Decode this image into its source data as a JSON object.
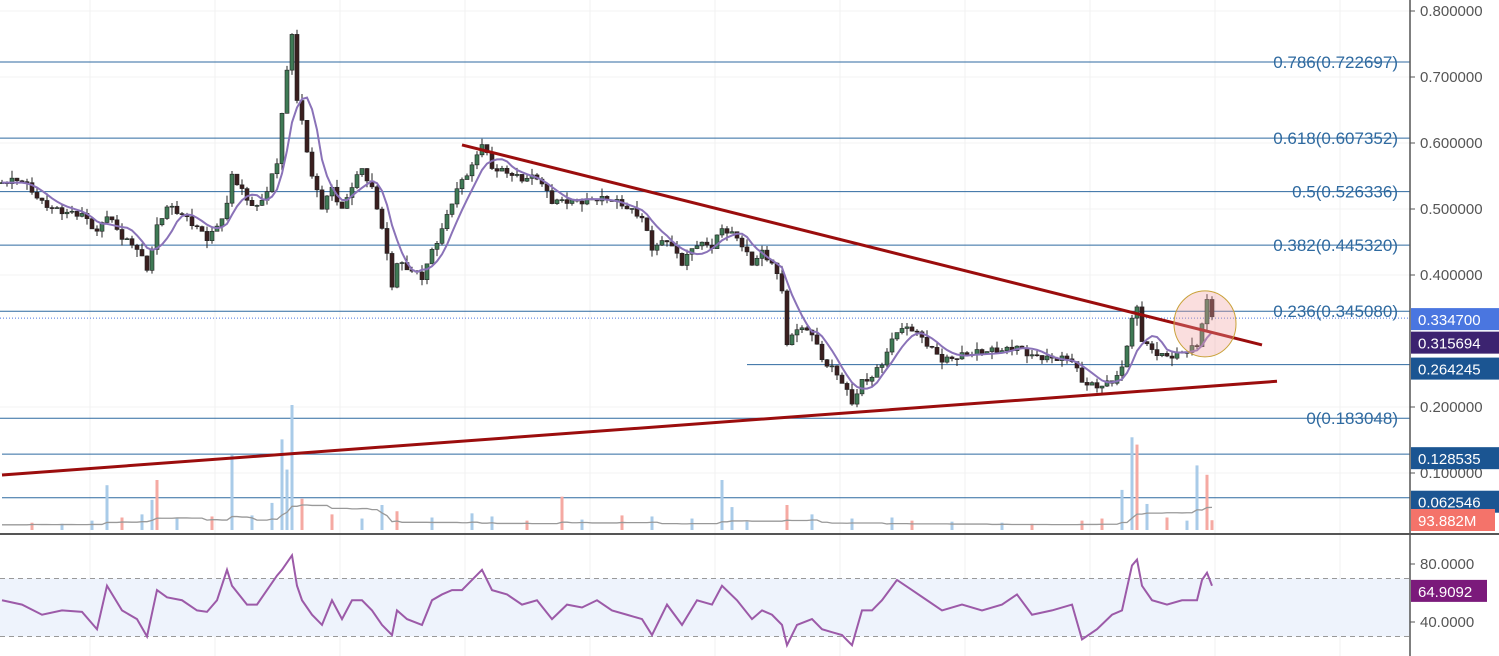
{
  "chart_data": [
    {
      "type": "candlestick",
      "title": "",
      "ylim": [
        0.0,
        0.82
      ],
      "y_ticks": [
        "0.800000",
        "0.700000",
        "0.600000",
        "0.500000",
        "0.400000",
        "0.200000",
        "0.100000"
      ],
      "grid": true,
      "colors": {
        "up": "#3f7a55",
        "down": "#3b1f1f",
        "moving_average": "#8a72b8",
        "fib": "#2f6aa0",
        "trendline": "#9b0d0d"
      },
      "series_close": [
        [
          0,
          0.54
        ],
        [
          4,
          0.54
        ],
        [
          8,
          0.51
        ],
        [
          12,
          0.5
        ],
        [
          16,
          0.49
        ],
        [
          19,
          0.46
        ],
        [
          21,
          0.49
        ],
        [
          24,
          0.46
        ],
        [
          27,
          0.445
        ],
        [
          29,
          0.41
        ],
        [
          31,
          0.47
        ],
        [
          33,
          0.5
        ],
        [
          36,
          0.49
        ],
        [
          39,
          0.475
        ],
        [
          41,
          0.46
        ],
        [
          43,
          0.475
        ],
        [
          45,
          0.505
        ],
        [
          46,
          0.55
        ],
        [
          49,
          0.51
        ],
        [
          51,
          0.5
        ],
        [
          53,
          0.53
        ],
        [
          55,
          0.575
        ],
        [
          56,
          0.65
        ],
        [
          58,
          0.77
        ],
        [
          59,
          0.665
        ],
        [
          60,
          0.63
        ],
        [
          62,
          0.545
        ],
        [
          64,
          0.5
        ],
        [
          66,
          0.53
        ],
        [
          68,
          0.5
        ],
        [
          70,
          0.54
        ],
        [
          72,
          0.565
        ],
        [
          74,
          0.53
        ],
        [
          76,
          0.47
        ],
        [
          78,
          0.38
        ],
        [
          79,
          0.415
        ],
        [
          81,
          0.41
        ],
        [
          84,
          0.4
        ],
        [
          86,
          0.44
        ],
        [
          88,
          0.47
        ],
        [
          90,
          0.51
        ],
        [
          92,
          0.54
        ],
        [
          94,
          0.56
        ],
        [
          96,
          0.6
        ],
        [
          98,
          0.565
        ],
        [
          101,
          0.56
        ],
        [
          104,
          0.545
        ],
        [
          107,
          0.545
        ],
        [
          110,
          0.51
        ],
        [
          113,
          0.515
        ],
        [
          116,
          0.515
        ],
        [
          119,
          0.515
        ],
        [
          122,
          0.51
        ],
        [
          125,
          0.5
        ],
        [
          128,
          0.49
        ],
        [
          130,
          0.445
        ],
        [
          133,
          0.455
        ],
        [
          136,
          0.415
        ],
        [
          139,
          0.445
        ],
        [
          142,
          0.445
        ],
        [
          144,
          0.475
        ],
        [
          147,
          0.46
        ],
        [
          150,
          0.415
        ],
        [
          152,
          0.43
        ],
        [
          154,
          0.415
        ],
        [
          156,
          0.38
        ],
        [
          157,
          0.295
        ],
        [
          159,
          0.325
        ],
        [
          162,
          0.315
        ],
        [
          164,
          0.27
        ],
        [
          166,
          0.255
        ],
        [
          168,
          0.235
        ],
        [
          170,
          0.205
        ],
        [
          172,
          0.24
        ],
        [
          174,
          0.25
        ],
        [
          176,
          0.27
        ],
        [
          179,
          0.315
        ],
        [
          182,
          0.315
        ],
        [
          185,
          0.295
        ],
        [
          188,
          0.275
        ],
        [
          192,
          0.28
        ],
        [
          196,
          0.28
        ],
        [
          200,
          0.285
        ],
        [
          203,
          0.295
        ],
        [
          206,
          0.28
        ],
        [
          210,
          0.27
        ],
        [
          214,
          0.27
        ],
        [
          216,
          0.24
        ],
        [
          219,
          0.235
        ],
        [
          222,
          0.24
        ],
        [
          224,
          0.255
        ],
        [
          226,
          0.33
        ],
        [
          227,
          0.345
        ],
        [
          228,
          0.3
        ],
        [
          230,
          0.285
        ],
        [
          233,
          0.28
        ],
        [
          236,
          0.285
        ],
        [
          239,
          0.29
        ],
        [
          240,
          0.325
        ],
        [
          241,
          0.355
        ],
        [
          242,
          0.335
        ]
      ],
      "fib_levels": [
        {
          "ratio": "0.786",
          "price": 0.722697,
          "label": "0.786(0.722697)"
        },
        {
          "ratio": "0.618",
          "price": 0.607352,
          "label": "0.618(0.607352)"
        },
        {
          "ratio": "0.5",
          "price": 0.526336,
          "label": "0.5(0.526336)"
        },
        {
          "ratio": "0.382",
          "price": 0.44532,
          "label": "0.382(0.445320)"
        },
        {
          "ratio": "0.236",
          "price": 0.34508,
          "label": "0.236(0.345080)"
        },
        {
          "ratio": "0",
          "price": 0.183048,
          "label": "0(0.183048)"
        }
      ],
      "horizontal_levels": [
        {
          "price": 0.264245,
          "label": "0.264245",
          "from_bar": 149
        },
        {
          "price": 0.128535,
          "label": "0.128535",
          "from_bar": 0
        },
        {
          "price": 0.062546,
          "label": "0.062546",
          "from_bar": 0
        }
      ],
      "trendlines": [
        {
          "name": "resistance",
          "from": [
            92,
            0.597
          ],
          "to": [
            252,
            0.294
          ]
        },
        {
          "name": "support",
          "from": [
            0,
            0.097
          ],
          "to": [
            255,
            0.239
          ]
        }
      ],
      "highlight_circle": {
        "bar": 240.6,
        "price": 0.326
      },
      "last_price": {
        "label": "0.334700",
        "price": 0.3347,
        "color": "#4a76e0"
      },
      "moving_average_value": {
        "label": "0.315694",
        "price": 0.315694,
        "color": "#3c2370"
      }
    },
    {
      "type": "bar",
      "name_shown": "",
      "unit": "M",
      "current_label": "93.882M",
      "current_color": "#f4736a",
      "colors": {
        "up": "#a9cbe8",
        "down": "#f5a9a2",
        "ma": "#999999"
      },
      "values": [
        [
          6,
          70,
          "down"
        ],
        [
          12,
          60,
          "up"
        ],
        [
          18,
          90,
          "up"
        ],
        [
          21,
          430,
          "up"
        ],
        [
          24,
          120,
          "down"
        ],
        [
          28,
          150,
          "up"
        ],
        [
          30,
          290,
          "up"
        ],
        [
          31,
          480,
          "down"
        ],
        [
          35,
          110,
          "up"
        ],
        [
          42,
          130,
          "down"
        ],
        [
          46,
          720,
          "up"
        ],
        [
          50,
          140,
          "up"
        ],
        [
          54,
          260,
          "up"
        ],
        [
          56,
          870,
          "up"
        ],
        [
          57,
          580,
          "up"
        ],
        [
          58,
          1200,
          "up"
        ],
        [
          60,
          300,
          "down"
        ],
        [
          66,
          150,
          "down"
        ],
        [
          72,
          110,
          "up"
        ],
        [
          76,
          240,
          "up"
        ],
        [
          79,
          180,
          "down"
        ],
        [
          86,
          120,
          "up"
        ],
        [
          94,
          160,
          "up"
        ],
        [
          98,
          130,
          "up"
        ],
        [
          105,
          90,
          "down"
        ],
        [
          112,
          320,
          "down"
        ],
        [
          116,
          100,
          "up"
        ],
        [
          124,
          140,
          "down"
        ],
        [
          130,
          130,
          "up"
        ],
        [
          138,
          110,
          "up"
        ],
        [
          144,
          480,
          "up"
        ],
        [
          146,
          220,
          "up"
        ],
        [
          149,
          80,
          "up"
        ],
        [
          157,
          240,
          "down"
        ],
        [
          162,
          150,
          "up"
        ],
        [
          170,
          110,
          "up"
        ],
        [
          178,
          120,
          "up"
        ],
        [
          182,
          90,
          "down"
        ],
        [
          190,
          80,
          "up"
        ],
        [
          200,
          70,
          "up"
        ],
        [
          206,
          60,
          "down"
        ],
        [
          216,
          90,
          "down"
        ],
        [
          220,
          110,
          "down"
        ],
        [
          224,
          385,
          "up"
        ],
        [
          226,
          890,
          "up"
        ],
        [
          227,
          820,
          "down"
        ],
        [
          229,
          250,
          "up"
        ],
        [
          233,
          120,
          "down"
        ],
        [
          237,
          90,
          "up"
        ],
        [
          239,
          620,
          "up"
        ],
        [
          241,
          530,
          "down"
        ],
        [
          242,
          94,
          "down"
        ]
      ]
    },
    {
      "type": "line",
      "name_shown": "",
      "ylim": [
        20,
        100
      ],
      "y_ticks": [
        "80.0000",
        "40.0000"
      ],
      "bands": [
        30,
        70
      ],
      "color": "#9c5aa8",
      "current_label": "64.9092",
      "current_color": "#7b1a7b",
      "values": [
        [
          0,
          55
        ],
        [
          4,
          52
        ],
        [
          8,
          45
        ],
        [
          12,
          48
        ],
        [
          16,
          47
        ],
        [
          19,
          35
        ],
        [
          21,
          65
        ],
        [
          24,
          48
        ],
        [
          27,
          42
        ],
        [
          29,
          30
        ],
        [
          31,
          62
        ],
        [
          33,
          57
        ],
        [
          36,
          55
        ],
        [
          39,
          48
        ],
        [
          41,
          47
        ],
        [
          43,
          55
        ],
        [
          45,
          76
        ],
        [
          46,
          65
        ],
        [
          49,
          52
        ],
        [
          51,
          52
        ],
        [
          53,
          62
        ],
        [
          55,
          72
        ],
        [
          56,
          76
        ],
        [
          58,
          86
        ],
        [
          59,
          65
        ],
        [
          60,
          55
        ],
        [
          62,
          45
        ],
        [
          64,
          38
        ],
        [
          66,
          55
        ],
        [
          68,
          42
        ],
        [
          70,
          55
        ],
        [
          72,
          55
        ],
        [
          74,
          48
        ],
        [
          76,
          38
        ],
        [
          78,
          31
        ],
        [
          79,
          48
        ],
        [
          81,
          42
        ],
        [
          84,
          38
        ],
        [
          86,
          55
        ],
        [
          88,
          59
        ],
        [
          90,
          62
        ],
        [
          92,
          62
        ],
        [
          94,
          69
        ],
        [
          96,
          76
        ],
        [
          98,
          62
        ],
        [
          101,
          59
        ],
        [
          104,
          52
        ],
        [
          107,
          55
        ],
        [
          110,
          42
        ],
        [
          113,
          52
        ],
        [
          116,
          50
        ],
        [
          119,
          55
        ],
        [
          122,
          48
        ],
        [
          125,
          45
        ],
        [
          128,
          42
        ],
        [
          130,
          31
        ],
        [
          133,
          52
        ],
        [
          136,
          38
        ],
        [
          139,
          55
        ],
        [
          142,
          52
        ],
        [
          144,
          65
        ],
        [
          147,
          55
        ],
        [
          150,
          42
        ],
        [
          152,
          48
        ],
        [
          154,
          45
        ],
        [
          156,
          38
        ],
        [
          157,
          24
        ],
        [
          159,
          38
        ],
        [
          162,
          42
        ],
        [
          164,
          35
        ],
        [
          166,
          33
        ],
        [
          168,
          31
        ],
        [
          170,
          24
        ],
        [
          172,
          48
        ],
        [
          174,
          48
        ],
        [
          176,
          55
        ],
        [
          179,
          69
        ],
        [
          182,
          62
        ],
        [
          185,
          55
        ],
        [
          188,
          48
        ],
        [
          192,
          52
        ],
        [
          196,
          48
        ],
        [
          200,
          52
        ],
        [
          203,
          59
        ],
        [
          206,
          45
        ],
        [
          210,
          48
        ],
        [
          214,
          52
        ],
        [
          216,
          28
        ],
        [
          219,
          35
        ],
        [
          222,
          45
        ],
        [
          224,
          48
        ],
        [
          226,
          79
        ],
        [
          227,
          83
        ],
        [
          228,
          65
        ],
        [
          230,
          55
        ],
        [
          233,
          52
        ],
        [
          236,
          55
        ],
        [
          239,
          55
        ],
        [
          240,
          69
        ],
        [
          241,
          74
        ],
        [
          242,
          65
        ]
      ]
    }
  ]
}
